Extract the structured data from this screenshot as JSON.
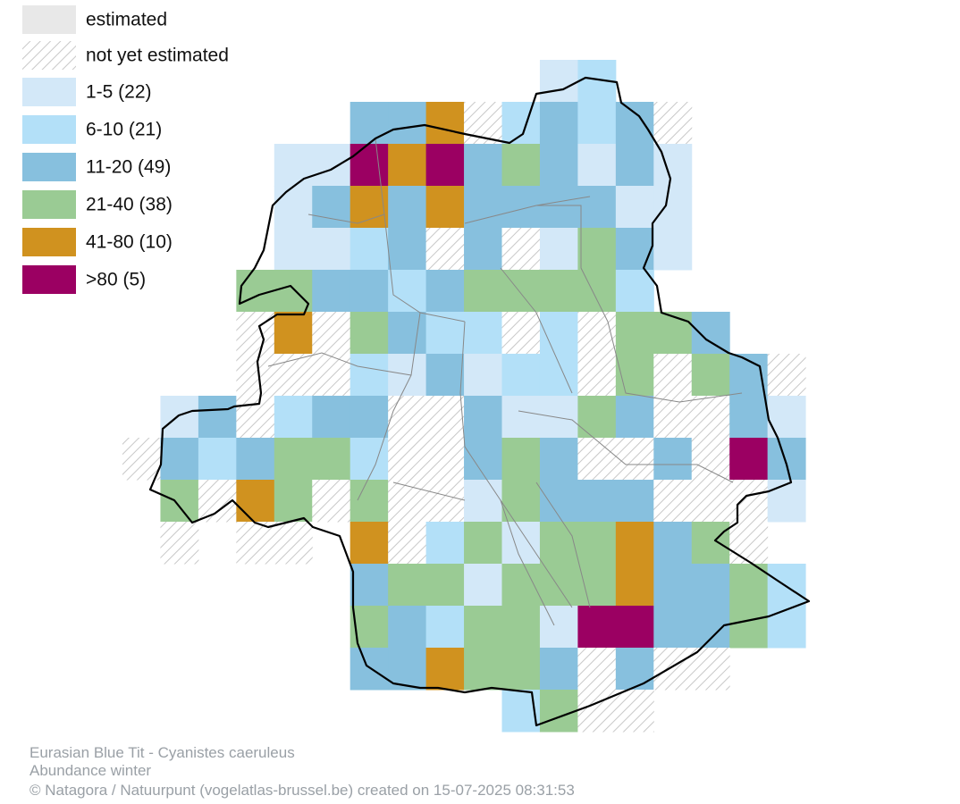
{
  "legend": [
    {
      "label": "estimated",
      "color": "#e8e8e8"
    },
    {
      "label": "not yet estimated",
      "color": "#c8c8c8"
    },
    {
      "label": "1-5 (22)",
      "color": "#d3e8f8"
    },
    {
      "label": "6-10 (21)",
      "color": "#b3e0f8"
    },
    {
      "label": "11-20 (49)",
      "color": "#87c0de"
    },
    {
      "label": "21-40 (38)",
      "color": "#9acb94"
    },
    {
      "label": "41-80 (10)",
      "color": "#d0921f"
    },
    {
      "label": ">80 (5)",
      "color": "#9b0062"
    }
  ],
  "footer": {
    "species": "Eurasian Blue Tit - Cyanistes caeruleus",
    "season": "Abundance winter",
    "credit": "© Natagora / Natuurpunt (vogelatlas-brussel.be) created on 15-07-2025 08:31:53"
  }
}
